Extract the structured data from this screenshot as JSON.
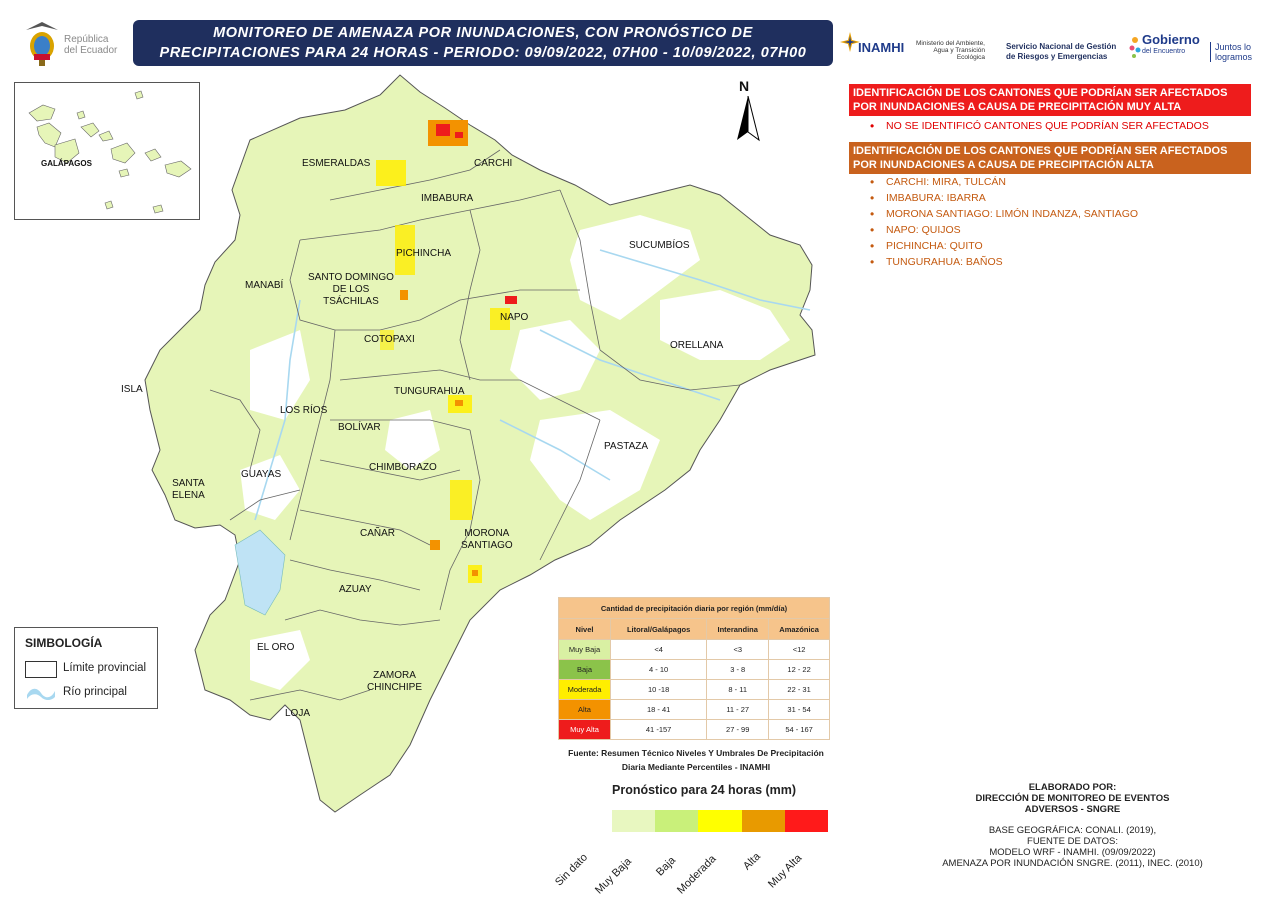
{
  "header": {
    "title_line1": "MONITOREO DE AMENAZA POR INUNDACIONES, CON PRONÓSTICO DE",
    "title_line2": "PRECIPITACIONES  PARA 24  HORAS - PERIODO: 09/09/2022, 07H00 - 10/09/2022, 07H00",
    "ecuador_logo_text": "República\ndel Ecuador",
    "inamhi_name": "INAMHI",
    "ministry_text": "Ministerio del Ambiente, Agua y Transición Ecológica",
    "sngre_text": "Servicio Nacional de Gestión de Riesgos y Emergencias",
    "gobierno_name": "Gobierno",
    "gobierno_sub": "del Encuentro",
    "juntos_text": "Juntos lo logramos"
  },
  "alerts": {
    "muy_alta_header": "IDENTIFICACIÓN DE LOS CANTONES QUE PODRÍAN SER AFECTADOS POR INUNDACIONES A CAUSA DE  PRECIPITACIÓN MUY ALTA",
    "muy_alta_items": [
      "NO SE IDENTIFICÓ CANTONES QUE PODRÍAN SER AFECTADOS"
    ],
    "alta_header": "IDENTIFICACIÓN DE LOS CANTONES QUE PODRÍAN SER AFECTADOS POR INUNDACIONES A CAUSA DE  PRECIPITACIÓN  ALTA",
    "alta_items": [
      "CARCHI: MIRA, TULCÁN",
      "IMBABURA: IBARRA",
      "MORONA SANTIAGO: LIMÓN INDANZA, SANTIAGO",
      "NAPO: QUIJOS",
      "PICHINCHA: QUITO",
      "TUNGURAHUA: BAÑOS"
    ]
  },
  "map": {
    "north_label": "N",
    "inset_label": "GALÁPAGOS",
    "provinces": {
      "esmeraldas": "ESMERALDAS",
      "carchi": "CARCHI",
      "imbabura": "IMBABURA",
      "sucumbios": "SUCUMBÍOS",
      "pichincha": "PICHINCHA",
      "santo_domingo": "SANTO DOMINGO\nDE LOS\nTSÁCHILAS",
      "manabi": "MANABÍ",
      "napo": "NAPO",
      "cotopaxi": "COTOPAXI",
      "orellana": "ORELLANA",
      "isla": "ISLA",
      "tungurahua": "TUNGURAHUA",
      "los_rios": "LOS RÍOS",
      "bolivar": "BOLÍVAR",
      "pastaza": "PASTAZA",
      "chimborazo": "CHIMBORAZO",
      "guayas": "GUAYAS",
      "santa_elena": "SANTA\nELENA",
      "canar": "CAÑAR",
      "morona": "MORONA\nSANTIAGO",
      "azuay": "AZUAY",
      "el_oro": "EL ORO",
      "zamora": "ZAMORA\nCHINCHIPE",
      "loja": "LOJA"
    }
  },
  "simbologia": {
    "title": "SIMBOLOGÍA",
    "limite": "Límite provincial",
    "rio": "Río principal"
  },
  "table": {
    "caption": "Cantidad de precipitación diaria por región (mm/día)",
    "headers": [
      "Nivel",
      "Litoral/Galápagos",
      "Interandina",
      "Amazónica"
    ],
    "rows": [
      {
        "nivel": "Muy Baja",
        "color": "#d9f0a3",
        "litoral": "<4",
        "interandina": "<3",
        "amazonica": "<12"
      },
      {
        "nivel": "Baja",
        "color": "#8bc34a",
        "litoral": "4 - 10",
        "interandina": "3 - 8",
        "amazonica": "12 - 22"
      },
      {
        "nivel": "Moderada",
        "color": "#ffee00",
        "litoral": "10 -18",
        "interandina": "8 - 11",
        "amazonica": "22 - 31"
      },
      {
        "nivel": "Alta",
        "color": "#f39200",
        "litoral": "18 - 41",
        "interandina": "11 - 27",
        "amazonica": "31 - 54"
      },
      {
        "nivel": "Muy Alta",
        "color": "#ee1c1c",
        "litoral": "41 -157",
        "interandina": "27 - 99",
        "amazonica": "54 - 167"
      }
    ],
    "fuente": "Fuente: Resumen Técnico Niveles Y Umbrales De Precipitación Diaria Mediante Percentiles - INAMHI"
  },
  "forecast_legend": {
    "title": "Pronóstico para 24 horas (mm)",
    "classes": [
      {
        "label": "Sin dato",
        "color": "#e8f7c0"
      },
      {
        "label": "Muy Baja",
        "color": "#c9f07a"
      },
      {
        "label": "Baja",
        "color": "#ffff00"
      },
      {
        "label": "Moderada",
        "color": "#e89a00"
      },
      {
        "label": "Alta",
        "color": "#ff1a1a"
      },
      {
        "label": "Muy Alta",
        "color": ""
      }
    ]
  },
  "credits": {
    "line1": "ELABORADO POR:",
    "line2": "DIRECCIÓN DE MONITOREO DE EVENTOS",
    "line3": "ADVERSOS - SNGRE",
    "line4": "BASE GEOGRÁFICA: CONALI. (2019),",
    "line5": "FUENTE DE DATOS:",
    "line6": "MODELO WRF - INAMHI. (09/09/2022)",
    "line7": "AMENAZA POR INUNDACIÓN SNGRE. (2011), INEC. (2010)"
  }
}
